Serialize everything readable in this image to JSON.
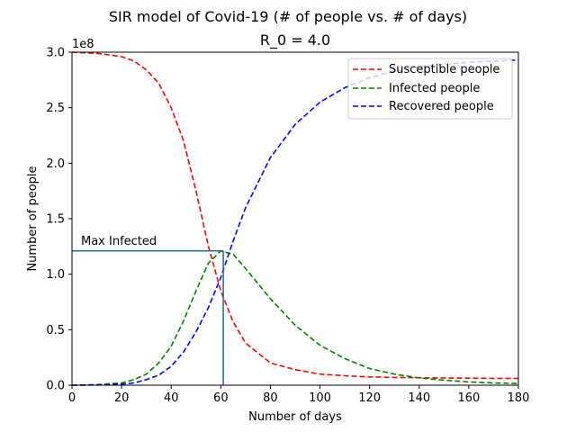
{
  "chart_data": {
    "type": "line",
    "title": "SIR model of Covid-19 (# of people vs. # of days)",
    "subtitle": "R_0 = 4.0",
    "xlabel": "Number of days",
    "ylabel": "Number of people",
    "y_scale_text": "1e8",
    "xlim": [
      0,
      180
    ],
    "ylim": [
      0,
      3.0
    ],
    "x_ticks": [
      0,
      20,
      40,
      60,
      80,
      100,
      120,
      140,
      160,
      180
    ],
    "y_ticks": [
      0.0,
      0.5,
      1.0,
      1.5,
      2.0,
      2.5,
      3.0
    ],
    "y_tick_labels": [
      "0.0",
      "0.5",
      "1.0",
      "1.5",
      "2.0",
      "2.5",
      "3.0"
    ],
    "grid": false,
    "legend_position": "top-right",
    "x": [
      0,
      10,
      20,
      25,
      30,
      35,
      40,
      45,
      50,
      55,
      60,
      65,
      70,
      80,
      90,
      100,
      110,
      120,
      130,
      140,
      150,
      160,
      170,
      180
    ],
    "series": [
      {
        "name": "Susceptible people",
        "color": "#ff0000",
        "line_style": "dashed",
        "values": [
          3.0,
          2.99,
          2.96,
          2.92,
          2.84,
          2.72,
          2.5,
          2.2,
          1.75,
          1.25,
          0.85,
          0.57,
          0.38,
          0.2,
          0.14,
          0.1,
          0.085,
          0.075,
          0.07,
          0.067,
          0.065,
          0.063,
          0.062,
          0.061
        ]
      },
      {
        "name": "Infected people",
        "color": "#008000",
        "line_style": "dashed",
        "values": [
          0.0,
          0.005,
          0.02,
          0.05,
          0.1,
          0.2,
          0.35,
          0.58,
          0.85,
          1.1,
          1.21,
          1.18,
          1.05,
          0.78,
          0.54,
          0.36,
          0.24,
          0.15,
          0.1,
          0.065,
          0.045,
          0.03,
          0.02,
          0.015
        ]
      },
      {
        "name": "Recovered people",
        "color": "#0000ff",
        "line_style": "dashed",
        "values": [
          0.0,
          0.002,
          0.01,
          0.02,
          0.05,
          0.09,
          0.17,
          0.3,
          0.48,
          0.7,
          0.97,
          1.3,
          1.6,
          2.05,
          2.35,
          2.55,
          2.68,
          2.77,
          2.83,
          2.87,
          2.89,
          2.91,
          2.92,
          2.93
        ]
      }
    ],
    "annotations": [
      {
        "text": "Max Infected",
        "x": 61,
        "y": 1.21,
        "color": "#1f6f8b"
      }
    ]
  }
}
